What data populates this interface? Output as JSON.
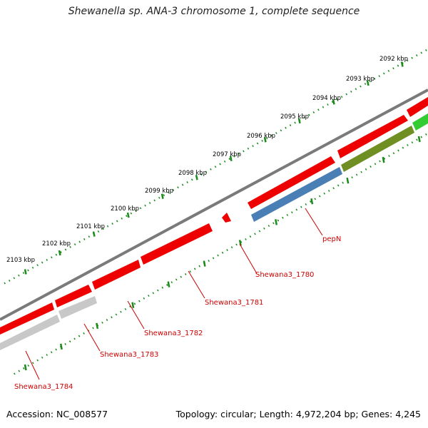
{
  "title": "Shewanella sp. ANA-3 chromosome 1, complete sequence",
  "footer": {
    "accession": "Accession: NC_008577",
    "summary": "Topology: circular; Length: 4,972,204 bp; Genes: 4,245"
  },
  "ruler_labels": [
    "2092 kbp",
    "2093 kbp",
    "2094 kbp",
    "2095 kbp",
    "2096 kbp",
    "2097 kbp",
    "2098 kbp",
    "2099 kbp",
    "2100 kbp",
    "2101 kbp",
    "2102 kbp",
    "2103 kbp"
  ],
  "gene_labels": [
    "pepN",
    "Shewana3_1780",
    "Shewana3_1781",
    "Shewana3_1782",
    "Shewana3_1783",
    "Shewana3_1784"
  ],
  "colors": {
    "backbone": "#7a7a7a",
    "cds": "#ee0000",
    "label": "#cc0000",
    "ticks": "#1a8a1a",
    "pepN_feature": "#4a7fb5",
    "olive_feature": "#6f8f22",
    "green_feature": "#33cc33",
    "grey_feature": "#c8c8c8"
  }
}
